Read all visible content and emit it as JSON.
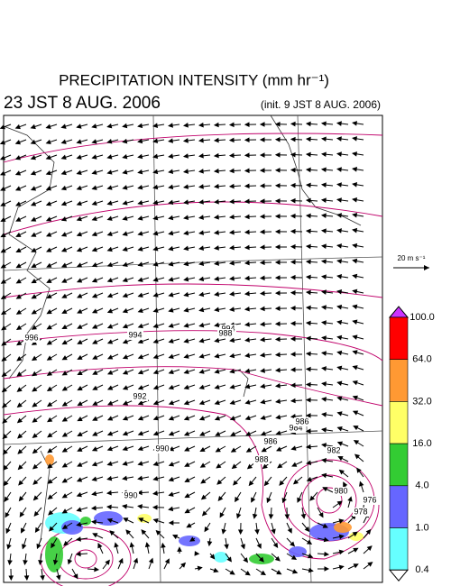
{
  "header": {
    "title": "PRECIPITATION INTENSITY (mm hr⁻¹)",
    "valid_time": "23 JST 8 AUG. 2006",
    "init_time": "(init. 9 JST 8 AUG. 2006)"
  },
  "vector_legend": {
    "label": "20 m s⁻¹"
  },
  "colorbar": {
    "labels": [
      "100.0",
      "64.0",
      "32.0",
      "16.0",
      "4.0",
      "1.0",
      "0.4"
    ],
    "colors": [
      "#ff0000",
      "#ff9933",
      "#ffff66",
      "#33cc33",
      "#6666ff",
      "#66ffff"
    ],
    "over_color": "#cc33ff",
    "under_color": "#ffffff"
  },
  "isobar_labels": [
    "996",
    "994",
    "994",
    "992",
    "990",
    "990",
    "988",
    "986",
    "984",
    "982",
    "980",
    "978",
    "976",
    "986",
    "988"
  ]
}
